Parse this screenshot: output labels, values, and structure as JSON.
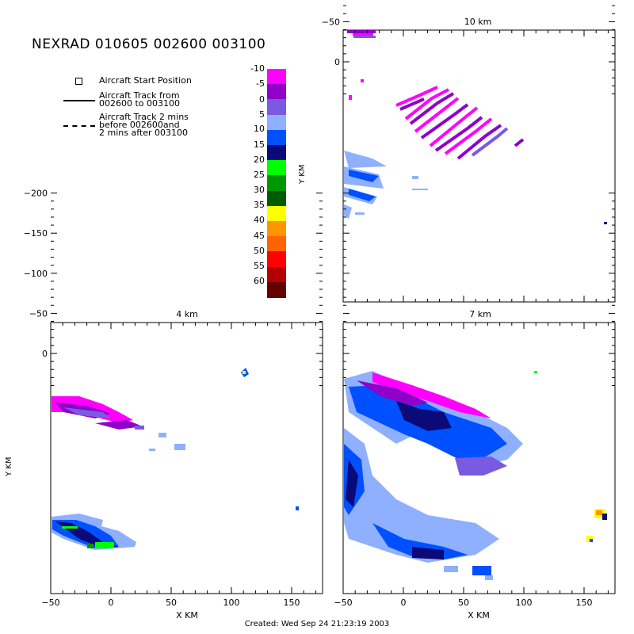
{
  "title": "NEXRAD 010605 002600 003100",
  "legend": {
    "start_position": "Aircraft Start Position",
    "track_line1": "Aircraft Track from",
    "track_line2": "002600 to 003100",
    "track2_line1": "Aircraft Track 2 mins",
    "track2_line2": "before 002600and",
    "track2_line3": "2 mins after 003100"
  },
  "colorbar": {
    "levels": [
      "-10",
      "-5",
      "0",
      "5",
      "10",
      "15",
      "20",
      "25",
      "30",
      "35",
      "40",
      "45",
      "50",
      "55",
      "60"
    ],
    "colors": [
      "#ff00ff",
      "#8f00c8",
      "#7a5ae0",
      "#8fb0ff",
      "#0050ff",
      "#0a0a78",
      "#00ff00",
      "#009600",
      "#005a00",
      "#ffff00",
      "#ff9600",
      "#ff6400",
      "#ff0000",
      "#b40000",
      "#640000"
    ]
  },
  "panels": [
    {
      "id": "10km",
      "title": "10 km",
      "ylabel": "Y KM",
      "xlabel": "",
      "yticks": [
        "0",
        "−50",
        "−100",
        "−150",
        "−200"
      ],
      "xticks": []
    },
    {
      "id": "4km",
      "title": "4 km",
      "ylabel": "Y KM",
      "xlabel": "X KM",
      "yticks": [
        "0",
        "−50",
        "−100",
        "−150",
        "−200"
      ],
      "xticks": [
        "−50",
        "0",
        "50",
        "100",
        "150"
      ]
    },
    {
      "id": "7km",
      "title": "7 km",
      "ylabel": "",
      "xlabel": "X KM",
      "yticks": [],
      "xticks": [
        "−50",
        "0",
        "50",
        "100",
        "150"
      ]
    }
  ],
  "footer": "Created: Wed Sep 24 21:23:19 2003"
}
